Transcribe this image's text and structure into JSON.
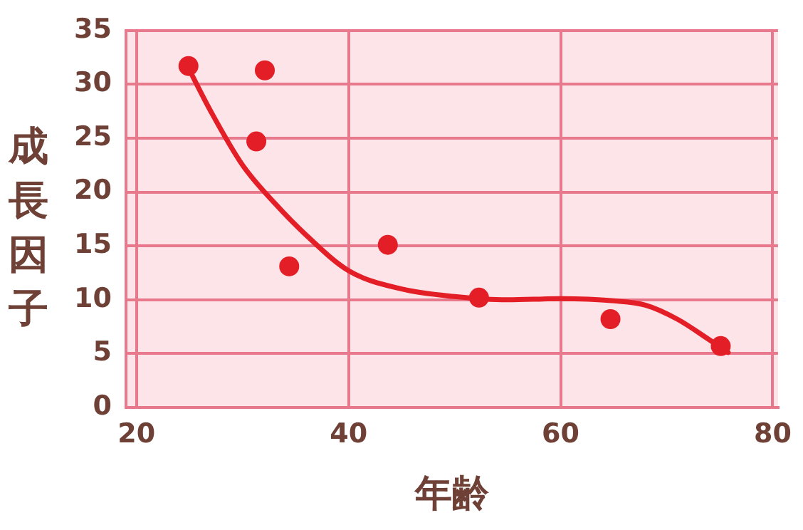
{
  "chart_data": {
    "type": "scatter",
    "xlabel": "年齢",
    "ylabel": "成長因子",
    "xlim": [
      19,
      80.5
    ],
    "xticks": [
      20,
      40,
      60,
      80
    ],
    "ylim": [
      0,
      35
    ],
    "yticks": [
      0,
      5,
      10,
      15,
      20,
      25,
      30,
      35
    ],
    "grid": true,
    "legend": false,
    "series": [
      {
        "type": "scatter",
        "color": "#e41e26",
        "marker": "circle",
        "x": [
          24.9,
          32.1,
          31.3,
          34.4,
          43.7,
          52.3,
          64.7,
          75.1
        ],
        "values": [
          31.7,
          31.3,
          24.7,
          13.1,
          15.1,
          10.2,
          8.2,
          5.7
        ]
      },
      {
        "type": "line",
        "color": "#e41e26",
        "x": [
          24.9,
          27,
          30,
          33,
          36,
          40,
          45,
          50,
          55,
          60,
          65,
          68,
          71,
          74,
          75.8
        ],
        "values": [
          31.5,
          27.5,
          22.5,
          19,
          16,
          12.7,
          11,
          10.3,
          10,
          10.1,
          9.9,
          9.5,
          8.2,
          6.3,
          5.1
        ]
      }
    ]
  }
}
